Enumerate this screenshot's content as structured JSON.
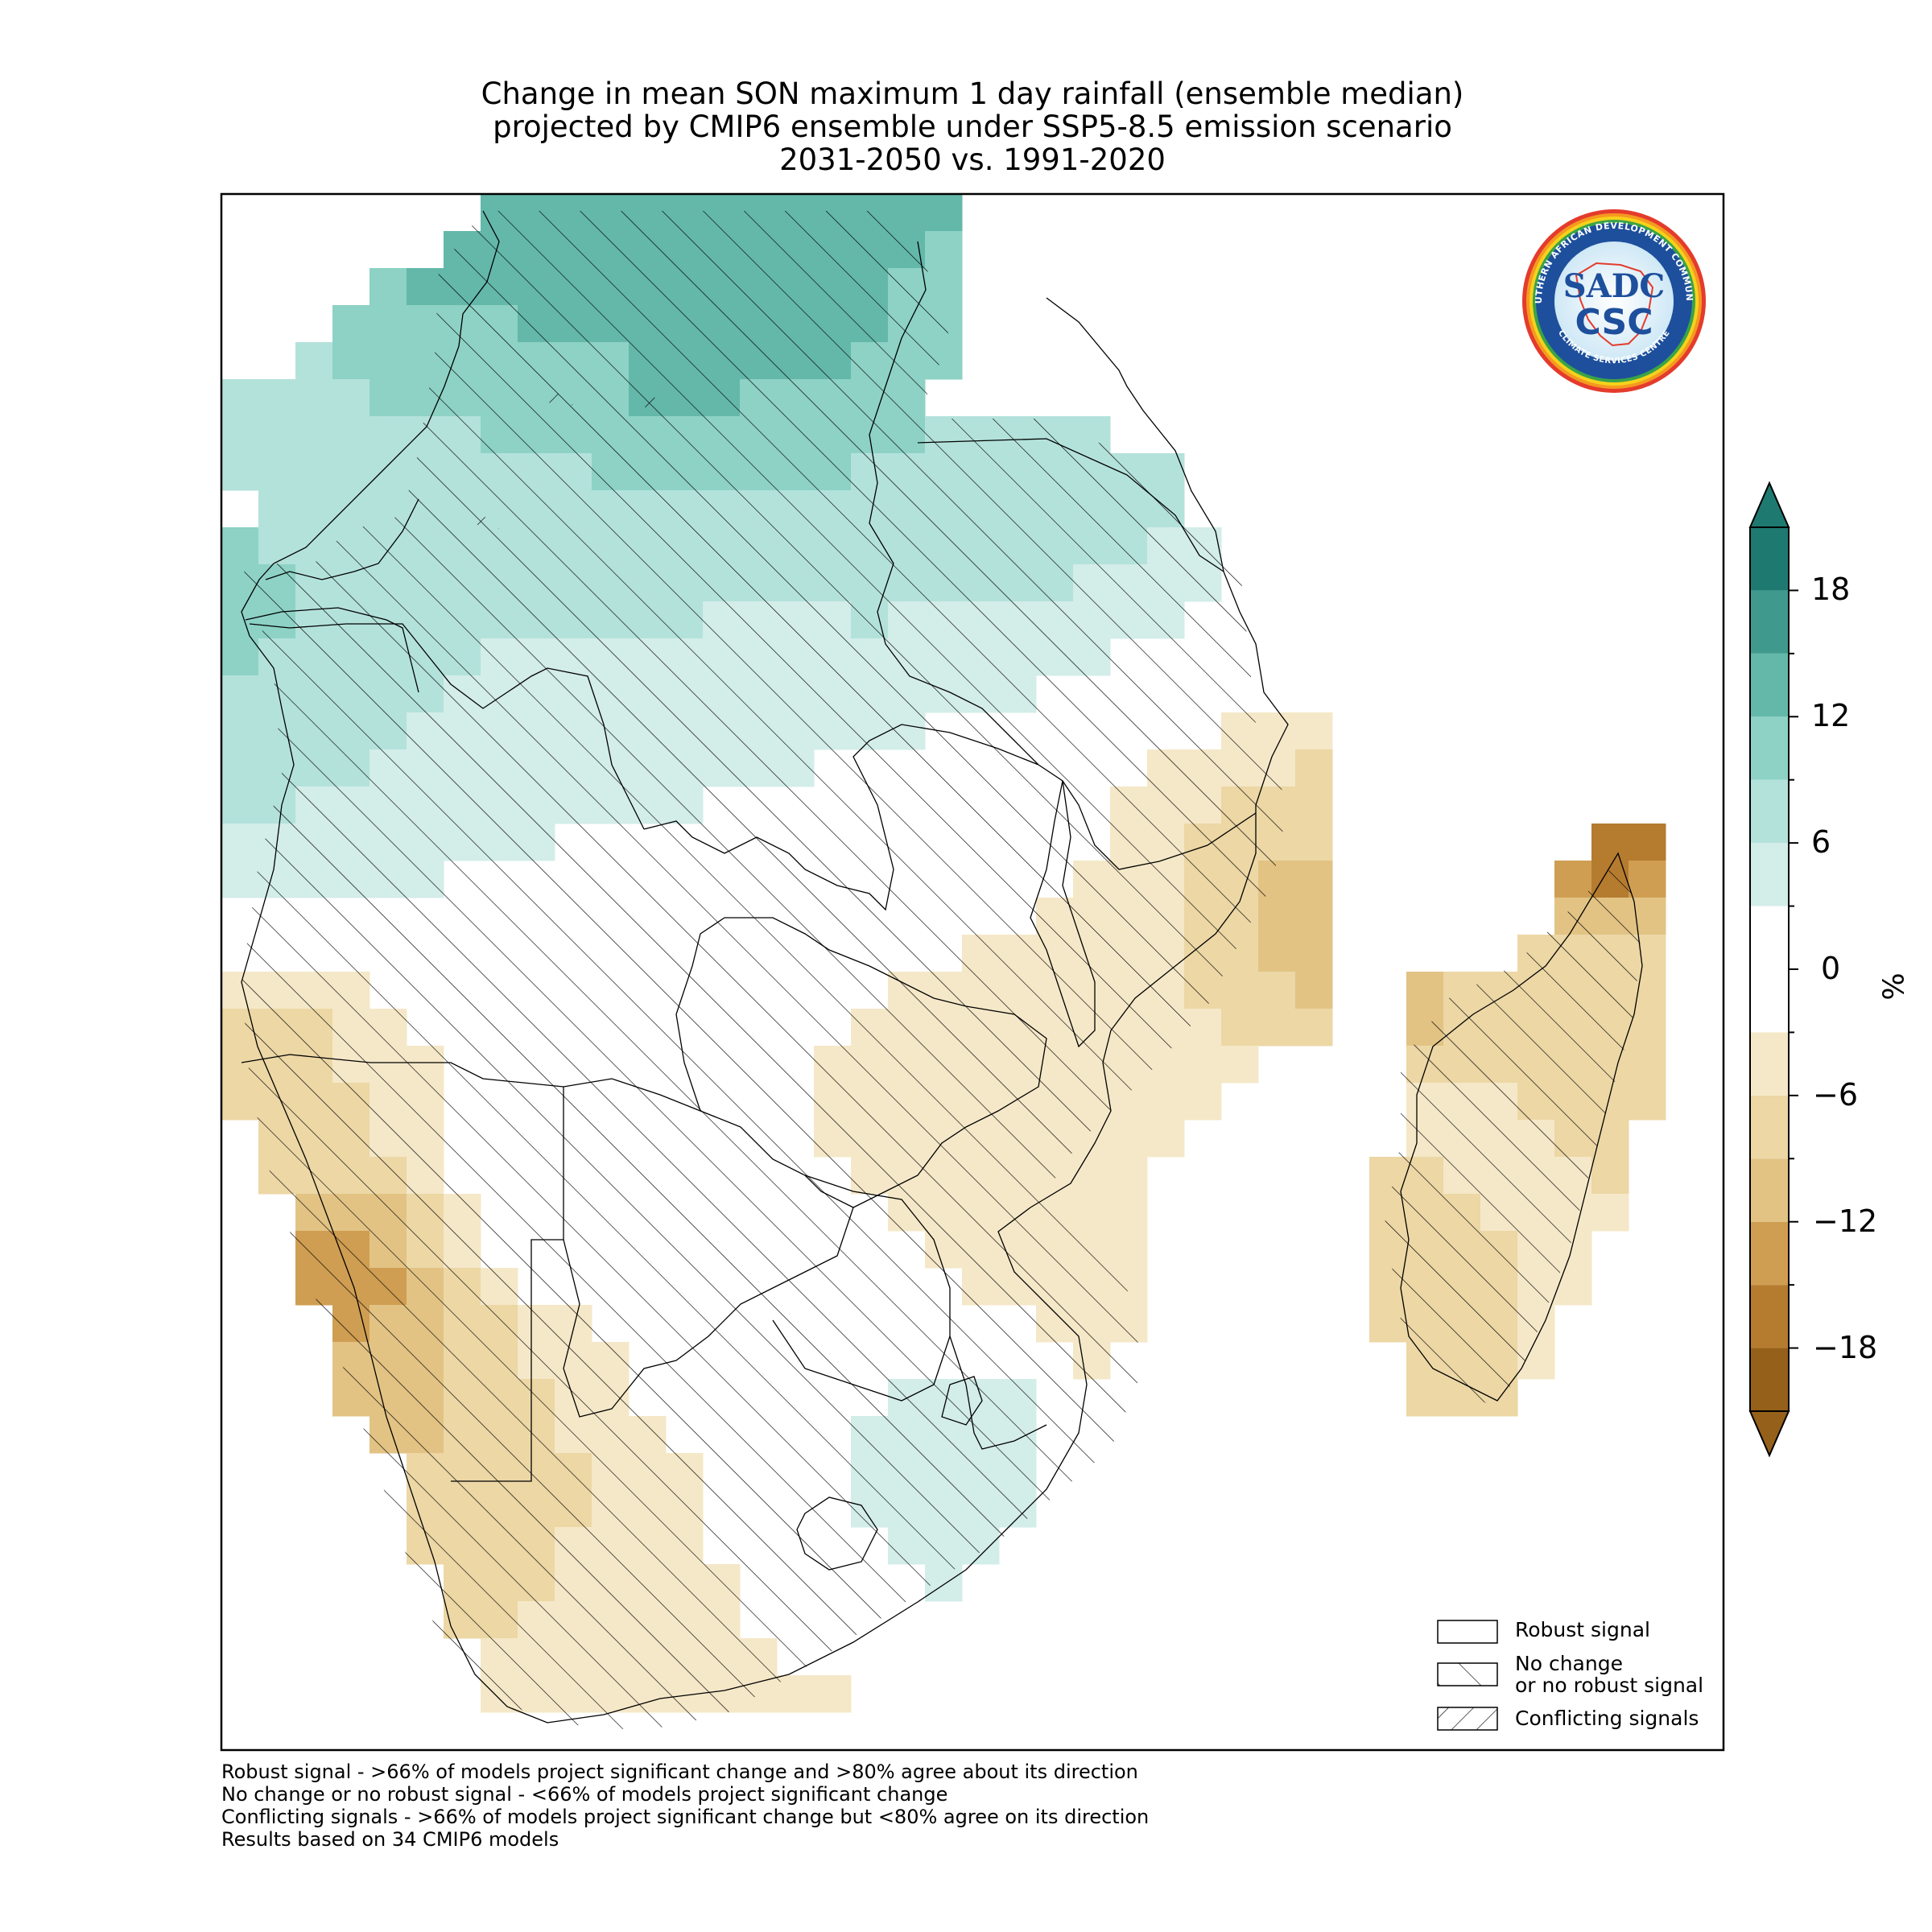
{
  "title": {
    "line1": "Change in mean SON maximum 1 day rainfall (ensemble median)",
    "line2": "projected by CMIP6 ensemble under SSP5-8.5 emission scenario",
    "line3": "2031-2050 vs. 1991-2020"
  },
  "legend": {
    "robust": "Robust signal",
    "no_change_1": "No change",
    "no_change_2": "or no robust signal",
    "conflicting": "Conflicting signals"
  },
  "notes": {
    "line1": "Robust signal - >66% of models project significant change and >80% agree about its direction",
    "line2": "No change or no robust signal - <66% of models project significant change",
    "line3": "Conflicting signals - >66% of models project significant change but <80% agree on its direction",
    "line4": "Results based on 34 CMIP6 models"
  },
  "colorbar": {
    "unit": "%",
    "ticks": [
      "18",
      "12",
      "6",
      "0",
      "−6",
      "−12",
      "−18"
    ],
    "tick_values": [
      18,
      12,
      6,
      0,
      -6,
      -12,
      -18
    ],
    "levels": [
      -21,
      -18,
      -15,
      -12,
      -9,
      -6,
      -3,
      3,
      6,
      9,
      12,
      15,
      18,
      21
    ],
    "colors": [
      "#95601a",
      "#b57b2f",
      "#cf9e52",
      "#e2c384",
      "#ecd7a5",
      "#f5e8c8",
      "#ffffff",
      "#d3ede9",
      "#b3e2db",
      "#8dd2c5",
      "#63b8aa",
      "#3f9a8d",
      "#1e7a70"
    ]
  },
  "logo": {
    "ring_text": "SOUTHERN AFRICAN DEVELOPMENT COMMUNITY",
    "ring_text_bottom": "CLIMATE SERVICES CENTRE",
    "mark_top": "SADC",
    "mark_bottom": "CSC"
  },
  "colors": {
    "frame": "#000000",
    "hatch": "#000000",
    "border": "#000000"
  }
}
